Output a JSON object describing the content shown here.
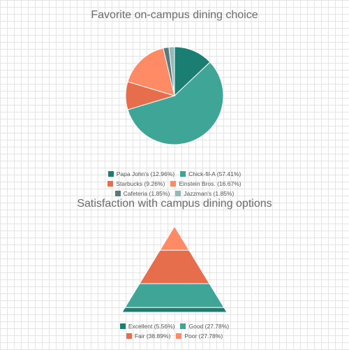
{
  "chart_data": [
    {
      "type": "pie",
      "title": "Favorite on-campus dining choice",
      "categories": [
        "Papa John's",
        "Chick-fil-A",
        "Starbucks",
        "Einstein Bros.",
        "Cafeteria",
        "Jazzman's"
      ],
      "values": [
        12.96,
        57.41,
        9.26,
        16.67,
        1.85,
        1.85
      ],
      "legend_labels": [
        "Papa John's (12.96%)",
        "Chick-fil-A (57.41%)",
        "Starbucks (9.26%)",
        "Einstein Bros. (16.67%)",
        "Cafeteria (1.85%)",
        "Jazzman's (1.85%)"
      ],
      "colors": [
        "#1a7f72",
        "#3fa697",
        "#e66e4d",
        "#ff8a66",
        "#597a7c",
        "#95b9b9"
      ],
      "legend_placement": "bottom"
    },
    {
      "type": "pyramid",
      "title": "Satisfaction with campus dining options",
      "categories": [
        "Excellent",
        "Good",
        "Fair",
        "Poor"
      ],
      "values": [
        5.56,
        27.78,
        38.89,
        27.78
      ],
      "legend_labels": [
        "Excellent (5.56%)",
        "Good (27.78%)",
        "Fair (38.89%)",
        "Poor (27.78%)"
      ],
      "colors": [
        "#1a7f72",
        "#3fa697",
        "#e66e4d",
        "#ff8a66"
      ],
      "legend_placement": "bottom"
    }
  ]
}
